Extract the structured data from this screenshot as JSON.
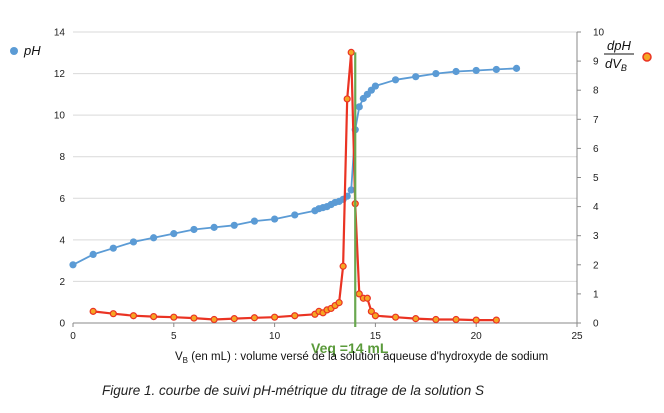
{
  "chart_data": {
    "type": "scatter",
    "caption": "Figure 1. courbe de suivi pH-métrique du titrage de la solution S",
    "xlabel": "V",
    "xlabel_sub": "B",
    "xlabel_rest": " (en mL) : volume versé de la solution aqueuse d'hydroxyde de sodium",
    "xlim": [
      0,
      25
    ],
    "x_ticks": [
      "0",
      "5",
      "10",
      "15",
      "20",
      "25"
    ],
    "ylim_left": [
      0,
      14
    ],
    "y_ticks_left": [
      "0",
      "2",
      "4",
      "6",
      "8",
      "10",
      "12",
      "14"
    ],
    "ylim_right": [
      0,
      10
    ],
    "y_ticks_right": [
      "0",
      "1",
      "2",
      "3",
      "4",
      "5",
      "6",
      "7",
      "8",
      "9",
      "10"
    ],
    "grid": "horizontal",
    "annotation": {
      "text": "Veq =14 mL",
      "x": 14,
      "color": "#6aa84f"
    },
    "series": [
      {
        "name": "pH",
        "axis": "left",
        "color": "#5b9bd5",
        "x": [
          0,
          1,
          2,
          3,
          4,
          5,
          6,
          7,
          8,
          9,
          10,
          11,
          12,
          12.2,
          12.4,
          12.6,
          12.8,
          13,
          13.2,
          13.4,
          13.6,
          13.8,
          14,
          14.2,
          14.4,
          14.6,
          14.8,
          15,
          16,
          17,
          18,
          19,
          20,
          21,
          22
        ],
        "values": [
          2.8,
          3.3,
          3.6,
          3.9,
          4.1,
          4.3,
          4.5,
          4.6,
          4.7,
          4.9,
          5.0,
          5.2,
          5.4,
          5.5,
          5.55,
          5.6,
          5.7,
          5.8,
          5.85,
          5.95,
          6.1,
          6.4,
          9.3,
          10.4,
          10.8,
          11.0,
          11.2,
          11.4,
          11.7,
          11.85,
          12.0,
          12.1,
          12.15,
          12.2,
          12.25
        ]
      },
      {
        "name": "dpH / dV_B",
        "legend_numerator": "dpH",
        "legend_denominator": "dV",
        "legend_denominator_sub": "B",
        "axis": "right",
        "color": "#ea3323",
        "marker_fill": "#f5a623",
        "x": [
          1,
          2,
          3,
          4,
          5,
          6,
          7,
          8,
          9,
          10,
          11,
          12,
          12.2,
          12.4,
          12.6,
          12.8,
          13,
          13.2,
          13.4,
          13.6,
          13.8,
          14,
          14.2,
          14.4,
          14.6,
          14.8,
          15,
          16,
          17,
          18,
          19,
          20,
          21
        ],
        "values": [
          0.4,
          0.32,
          0.25,
          0.22,
          0.2,
          0.17,
          0.12,
          0.15,
          0.18,
          0.2,
          0.25,
          0.3,
          0.4,
          0.35,
          0.45,
          0.5,
          0.6,
          0.7,
          1.95,
          7.7,
          9.3,
          4.1,
          1.0,
          0.85,
          0.85,
          0.4,
          0.25,
          0.2,
          0.15,
          0.12,
          0.12,
          0.1,
          0.1
        ]
      }
    ]
  }
}
